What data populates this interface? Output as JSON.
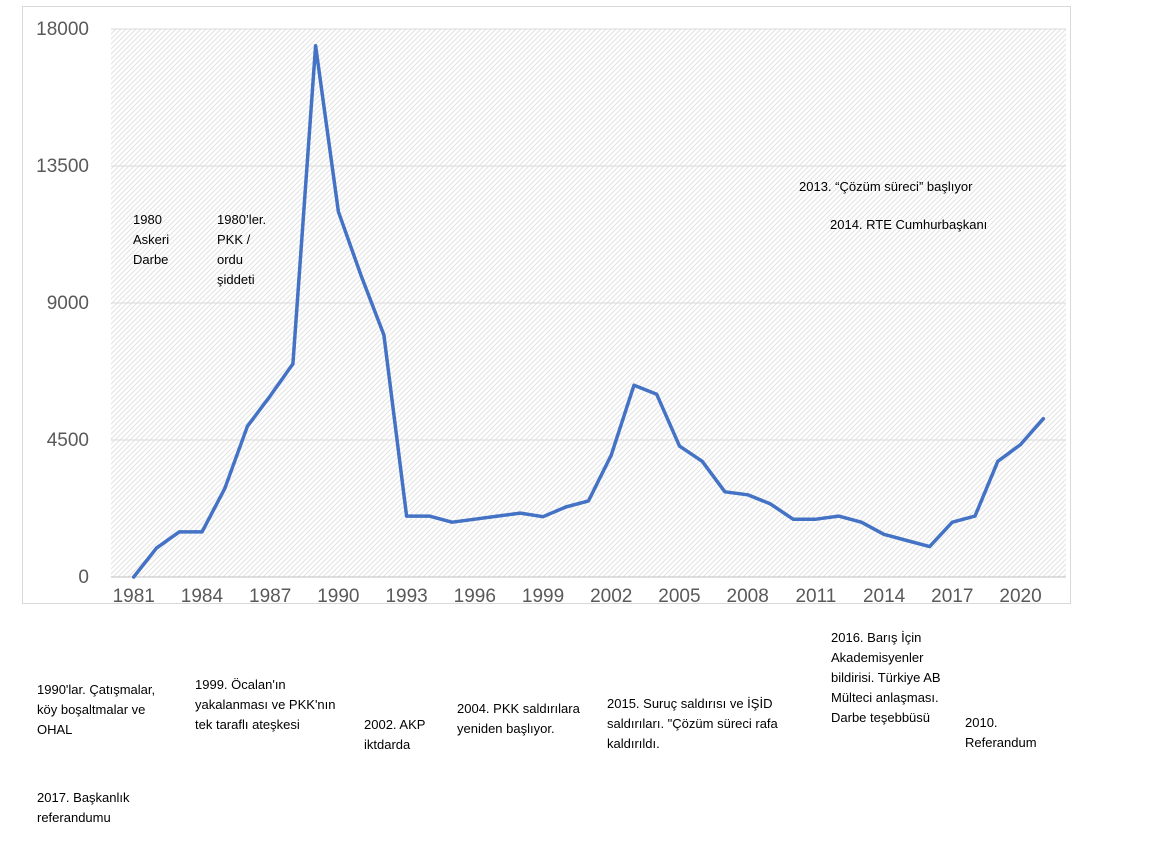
{
  "chart_data": {
    "type": "line",
    "title": "",
    "xlabel": "",
    "ylabel": "",
    "ylim": [
      0,
      18000
    ],
    "y_ticks": [
      "0",
      "4500",
      "9000",
      "13500",
      "18000"
    ],
    "x_ticks": [
      "1981",
      "1984",
      "1987",
      "1990",
      "1993",
      "1996",
      "1999",
      "2002",
      "2005",
      "2008",
      "2011",
      "2014",
      "2017",
      "2020"
    ],
    "grid": true,
    "line_color": "#4472C4",
    "series": [
      {
        "x": [
          1981,
          1982,
          1983,
          1984,
          1985,
          1986,
          1987,
          1988,
          1989,
          1990,
          1991,
          1992,
          1993,
          1994,
          1995,
          1996,
          1997,
          1998,
          1999,
          2000,
          2001,
          2002,
          2003,
          2004,
          2005,
          2006,
          2007,
          2008,
          2009,
          2010,
          2011,
          2012,
          2013,
          2014,
          2015,
          2016,
          2017,
          2018,
          2019,
          2020,
          2021
        ],
        "values": [
          0,
          950,
          1480,
          1480,
          2900,
          4950,
          5950,
          7000,
          17450,
          12000,
          9900,
          7950,
          2000,
          2000,
          1800,
          1900,
          2000,
          2100,
          1980,
          2300,
          2500,
          4000,
          6300,
          6000,
          4300,
          3800,
          2800,
          2700,
          2400,
          1900,
          1900,
          2000,
          1800,
          1400,
          1200,
          1000,
          1800,
          2000,
          3800,
          4350,
          5200
        ]
      }
    ]
  },
  "annotations": {
    "a1980": "1980\nAskeri\nDarbe",
    "a1980s": "1980’ler.\nPKK /\nordu\nşiddeti",
    "a2013": "2013. “Çözüm süreci” başlıyor",
    "a2014": "2014. RTE Cumhurbaşkanı",
    "a1990s": "1990'lar. Çatışmalar,\nköy boşaltmalar ve\nOHAL",
    "a1999": "1999. Öcalan'ın\nyakalanması ve PKK'nın\ntek taraflı ateşkesi",
    "a2002": "2002. AKP\niktdarda",
    "a2004": "2004. PKK saldırılara\nyeniden başlıyor.",
    "a2015": "2015. Suruç saldırısı ve İŞİD\nsaldırıları. \"Çözüm süreci rafa\nkaldırıldı.",
    "a2016": "2016. Barış İçin\nAkademisyenler\nbildirisi. Türkiye AB\nMülteci anlaşması.\nDarbe teşebbüsü",
    "a2010": "2010.\nReferandum",
    "a2017": "2017. Başkanlık\nreferandumu"
  }
}
